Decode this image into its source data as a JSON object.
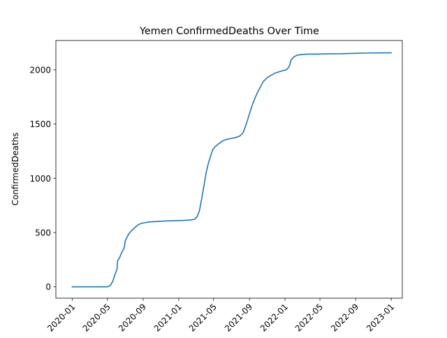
{
  "chart_data": {
    "type": "line",
    "title": "Yemen  ConfirmedDeaths Over Time",
    "xlabel": "",
    "ylabel": "ConfirmedDeaths",
    "xlim": [
      "2019-11-06",
      "2023-02-08"
    ],
    "ylim": [
      -105,
      2270
    ],
    "x_ticks": [
      "2020-01",
      "2020-05",
      "2020-09",
      "2021-01",
      "2021-05",
      "2021-09",
      "2022-01",
      "2022-05",
      "2022-09",
      "2023-01"
    ],
    "y_ticks": [
      0,
      500,
      1000,
      1500,
      2000
    ],
    "grid": false,
    "line_color": "#1f77b4",
    "series": [
      {
        "x": [
          "2020-01-01",
          "2020-04-28",
          "2020-05-05",
          "2020-05-12",
          "2020-05-20",
          "2020-05-28",
          "2020-06-03",
          "2020-06-05",
          "2020-06-12",
          "2020-06-20",
          "2020-06-28",
          "2020-07-01",
          "2020-07-06",
          "2020-07-14",
          "2020-07-24",
          "2020-08-03",
          "2020-08-14",
          "2020-08-25",
          "2020-09-06",
          "2020-09-20",
          "2020-10-15",
          "2020-11-10",
          "2020-12-06",
          "2021-01-01",
          "2021-01-20",
          "2021-02-10",
          "2021-02-25",
          "2021-03-06",
          "2021-03-13",
          "2021-03-20",
          "2021-03-28",
          "2021-04-05",
          "2021-04-12",
          "2021-04-20",
          "2021-04-28",
          "2021-05-06",
          "2021-05-14",
          "2021-05-22",
          "2021-06-01",
          "2021-06-10",
          "2021-06-20",
          "2021-07-01",
          "2021-07-15",
          "2021-07-30",
          "2021-08-10",
          "2021-08-20",
          "2021-08-28",
          "2021-09-04",
          "2021-09-10",
          "2021-09-17",
          "2021-09-25",
          "2021-10-02",
          "2021-10-10",
          "2021-10-18",
          "2021-10-27",
          "2021-11-05",
          "2021-11-15",
          "2021-11-28",
          "2021-12-10",
          "2021-12-22",
          "2022-01-01",
          "2022-01-10",
          "2022-01-17",
          "2022-01-22",
          "2022-02-01",
          "2022-02-12",
          "2022-02-26",
          "2022-03-20",
          "2022-04-20",
          "2022-06-01",
          "2022-07-15",
          "2022-08-01",
          "2022-09-01",
          "2022-10-15",
          "2022-12-01",
          "2023-01-01"
        ],
        "values": [
          0,
          0,
          3,
          15,
          55,
          120,
          160,
          240,
          270,
          320,
          360,
          420,
          450,
          490,
          520,
          545,
          570,
          585,
          590,
          598,
          602,
          606,
          608,
          610,
          612,
          616,
          622,
          650,
          700,
          800,
          920,
          1050,
          1130,
          1200,
          1265,
          1290,
          1310,
          1325,
          1345,
          1355,
          1362,
          1368,
          1375,
          1390,
          1420,
          1490,
          1560,
          1620,
          1670,
          1720,
          1770,
          1810,
          1850,
          1890,
          1915,
          1935,
          1950,
          1970,
          1980,
          1990,
          1995,
          2010,
          2040,
          2090,
          2120,
          2135,
          2140,
          2145,
          2145,
          2147,
          2148,
          2150,
          2152,
          2155,
          2156,
          2157
        ]
      }
    ]
  }
}
